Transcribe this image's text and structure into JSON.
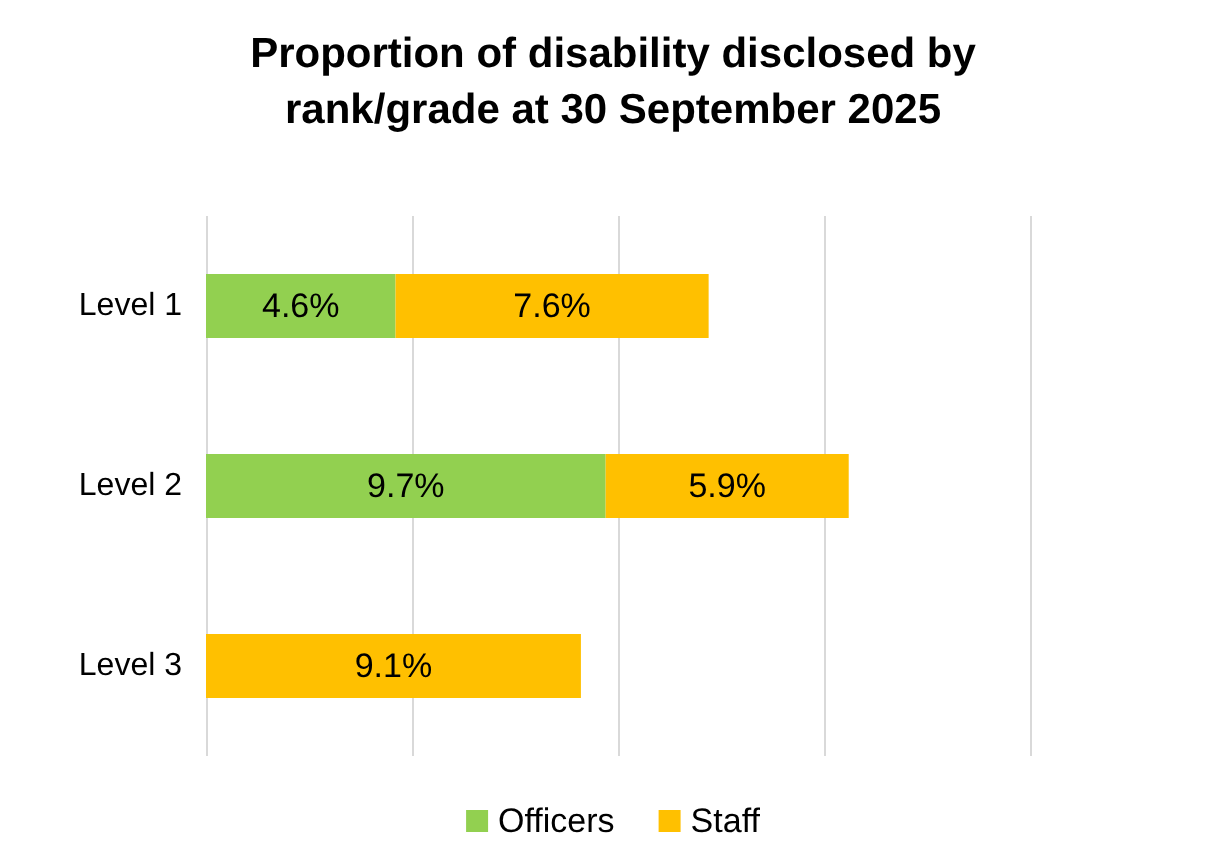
{
  "chart_data": {
    "type": "bar",
    "orientation": "horizontal",
    "stacked": true,
    "title": "Proportion of disability disclosed by\nrank/grade at 30 September 2025",
    "categories": [
      "Level 1",
      "Level 2",
      "Level 3"
    ],
    "series": [
      {
        "name": "Officers",
        "color": "#92d050",
        "values": [
          4.6,
          9.7,
          null
        ],
        "value_labels": [
          "4.6%",
          "9.7%",
          null
        ]
      },
      {
        "name": "Staff",
        "color": "#ffc000",
        "values": [
          7.6,
          5.9,
          9.1
        ],
        "value_labels": [
          "7.6%",
          "5.9%",
          "9.1%"
        ]
      }
    ],
    "tick_labels": "y",
    "grid": "x",
    "legend": "bottom"
  }
}
